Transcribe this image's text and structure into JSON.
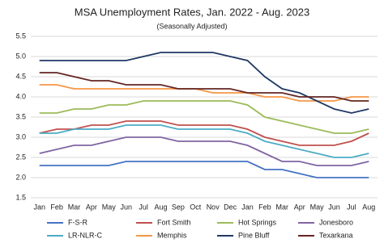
{
  "chart_data": {
    "type": "line",
    "title": "MSA Unemployment Rates, Jan. 2022 - Aug. 2023",
    "subtitle": "(Seasonally Adjusted)",
    "categories": [
      "Jan",
      "Feb",
      "Mar",
      "Apr",
      "May",
      "Jun",
      "Jul",
      "Aug",
      "Sep",
      "Oct",
      "Nov",
      "Dec",
      "Jan",
      "Feb",
      "Mar",
      "Apr",
      "May",
      "Jun",
      "Jul",
      "Aug"
    ],
    "ylim": [
      1.5,
      5.5
    ],
    "yticks": [
      1.5,
      {
        "value": 2,
        "label": "2.0"
      },
      2.5,
      {
        "value": 3,
        "label": "3.0"
      },
      3.5,
      {
        "value": 4,
        "label": "4.0"
      },
      4.5,
      {
        "value": 5,
        "label": "5.0"
      },
      5.5
    ],
    "grid": true,
    "legend": "bottom",
    "series": [
      {
        "name": "F-S-R",
        "color": "#4472c4",
        "values": [
          2.3,
          2.3,
          2.3,
          2.3,
          2.3,
          2.4,
          2.4,
          2.4,
          2.4,
          2.4,
          2.4,
          2.4,
          2.4,
          2.2,
          2.2,
          2.1,
          2.0,
          2.0,
          2.0,
          2.0
        ]
      },
      {
        "name": "Fort Smith",
        "color": "#c0504d",
        "values": [
          3.1,
          3.2,
          3.2,
          3.3,
          3.3,
          3.4,
          3.4,
          3.4,
          3.3,
          3.3,
          3.3,
          3.3,
          3.2,
          3.0,
          2.9,
          2.8,
          2.8,
          2.8,
          2.9,
          3.1
        ]
      },
      {
        "name": "Hot Springs",
        "color": "#9bbb59",
        "values": [
          3.6,
          3.6,
          3.7,
          3.7,
          3.8,
          3.8,
          3.9,
          3.9,
          3.9,
          3.9,
          3.9,
          3.9,
          3.8,
          3.5,
          3.4,
          3.3,
          3.2,
          3.1,
          3.1,
          3.2
        ]
      },
      {
        "name": "Jonesboro",
        "color": "#8064a2",
        "values": [
          2.6,
          2.7,
          2.8,
          2.8,
          2.9,
          3.0,
          3.0,
          3.0,
          2.9,
          2.9,
          2.9,
          2.9,
          2.8,
          2.6,
          2.4,
          2.4,
          2.3,
          2.3,
          2.3,
          2.4
        ]
      },
      {
        "name": "LR-NLR-C",
        "color": "#4bacc6",
        "values": [
          3.1,
          3.1,
          3.2,
          3.2,
          3.2,
          3.3,
          3.3,
          3.3,
          3.2,
          3.2,
          3.2,
          3.2,
          3.1,
          2.9,
          2.8,
          2.7,
          2.6,
          2.5,
          2.5,
          2.6
        ]
      },
      {
        "name": "Memphis",
        "color": "#f79646",
        "values": [
          4.3,
          4.3,
          4.2,
          4.2,
          4.2,
          4.2,
          4.2,
          4.2,
          4.2,
          4.2,
          4.1,
          4.1,
          4.1,
          4.0,
          4.0,
          3.9,
          3.9,
          3.9,
          4.0,
          4.0
        ]
      },
      {
        "name": "Pine Bluff",
        "color": "#1f3864",
        "values": [
          4.9,
          4.9,
          4.9,
          4.9,
          4.9,
          4.9,
          5.0,
          5.1,
          5.1,
          5.1,
          5.1,
          5.0,
          4.9,
          4.5,
          4.2,
          4.1,
          3.9,
          3.7,
          3.6,
          3.7
        ]
      },
      {
        "name": "Texarkana",
        "color": "#632523",
        "values": [
          4.6,
          4.6,
          4.5,
          4.4,
          4.4,
          4.3,
          4.3,
          4.3,
          4.2,
          4.2,
          4.2,
          4.2,
          4.1,
          4.1,
          4.1,
          4.0,
          4.0,
          4.0,
          3.9,
          3.9
        ]
      }
    ]
  }
}
